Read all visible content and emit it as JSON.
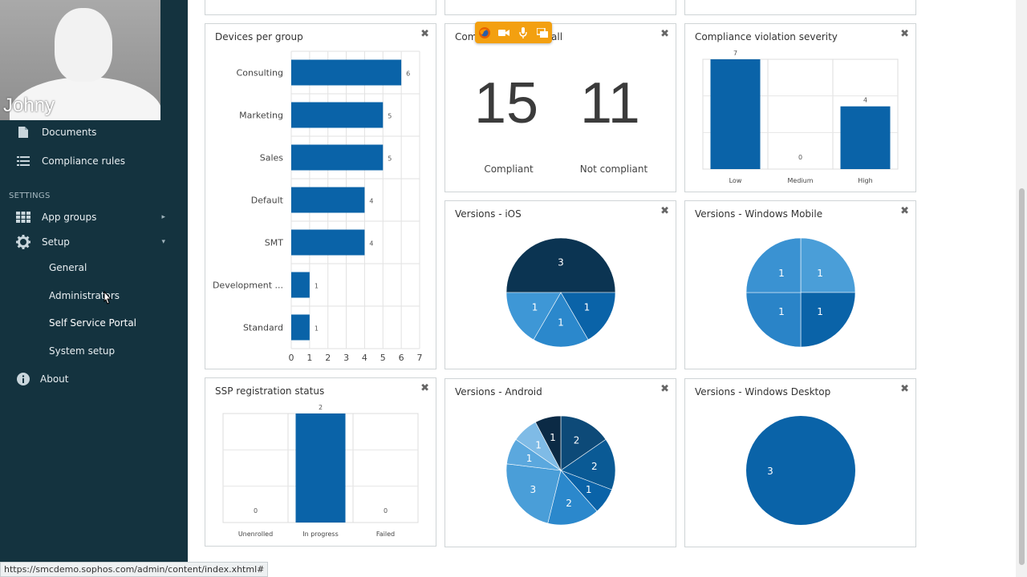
{
  "webcam": {
    "name": "Johny"
  },
  "sidebar": {
    "items": [
      {
        "label": "Documents",
        "icon": "document-icon"
      },
      {
        "label": "Compliance rules",
        "icon": "list-icon"
      }
    ],
    "settings_header": "SETTINGS",
    "settings": [
      {
        "label": "App groups",
        "icon": "grid-icon",
        "chevron": "▸"
      },
      {
        "label": "Setup",
        "icon": "gear-icon",
        "chevron": "▾"
      }
    ],
    "setup_sub": [
      {
        "label": "General"
      },
      {
        "label": "Administrators"
      },
      {
        "label": "Self Service Portal"
      },
      {
        "label": "System setup"
      }
    ],
    "about": {
      "label": "About",
      "icon": "info-icon"
    }
  },
  "status_url": "https://smcdemo.sophos.com/admin/content/index.xhtml#",
  "close_glyph": "✖",
  "panels": {
    "devices_per_group": {
      "title": "Devices per group",
      "chart_data": {
        "type": "bar",
        "orientation": "horizontal",
        "categories": [
          "Consulting",
          "Marketing",
          "Sales",
          "Default",
          "SMT",
          "Development ...",
          "Standard"
        ],
        "values": [
          6,
          5,
          5,
          4,
          4,
          1,
          1
        ],
        "xlim": [
          0,
          7
        ],
        "xticks": [
          "0",
          "1",
          "2",
          "3",
          "4",
          "5",
          "6",
          "7"
        ],
        "color": "#0a63a8"
      }
    },
    "compliance": {
      "title_left": "Com",
      "title_right": "all",
      "compliant_value": "15",
      "not_compliant_value": "11",
      "compliant_label": "Compliant",
      "not_compliant_label": "Not compliant"
    },
    "severity": {
      "title": "Compliance violation severity",
      "chart_data": {
        "type": "bar",
        "categories": [
          "Low",
          "Medium",
          "High"
        ],
        "values": [
          7,
          0,
          4
        ],
        "ylim": [
          0,
          7
        ],
        "color": "#0a63a8"
      }
    },
    "ios": {
      "title": "Versions - iOS",
      "chart_data": {
        "type": "pie",
        "values": [
          3,
          1,
          1,
          1
        ],
        "labels": [
          "3",
          "1",
          "1",
          "1"
        ],
        "colors": [
          "#0b3452",
          "#0a63a8",
          "#2b88cc",
          "#3e97d6"
        ]
      }
    },
    "winmobile": {
      "title": "Versions - Windows Mobile",
      "chart_data": {
        "type": "pie",
        "values": [
          1,
          1,
          1,
          1
        ],
        "labels": [
          "1",
          "1",
          "1",
          "1"
        ],
        "colors": [
          "#4a9ed8",
          "#0a63a8",
          "#2a84c8",
          "#3a92d2"
        ]
      }
    },
    "ssp": {
      "title": "SSP registration status",
      "chart_data": {
        "type": "bar",
        "categories": [
          "Unenrolled",
          "In progress",
          "Failed"
        ],
        "values": [
          0,
          2,
          0
        ],
        "ylim": [
          0,
          2
        ],
        "color": "#0a63a8"
      }
    },
    "android": {
      "title": "Versions - Android",
      "chart_data": {
        "type": "pie",
        "values": [
          2,
          2,
          1,
          2,
          3,
          1,
          1,
          1
        ],
        "labels": [
          "2",
          "2",
          "1",
          "2",
          "3",
          "1",
          "1",
          "1"
        ],
        "colors": [
          "#0d4a78",
          "#0a5a95",
          "#0a63a8",
          "#2b88cc",
          "#4a9ed8",
          "#5ba8de",
          "#7fbbe6",
          "#0b2a45"
        ]
      }
    },
    "windesktop": {
      "title": "Versions - Windows Desktop",
      "chart_data": {
        "type": "pie",
        "values": [
          3
        ],
        "labels": [
          "3"
        ],
        "colors": [
          "#0a63a8"
        ]
      }
    }
  }
}
